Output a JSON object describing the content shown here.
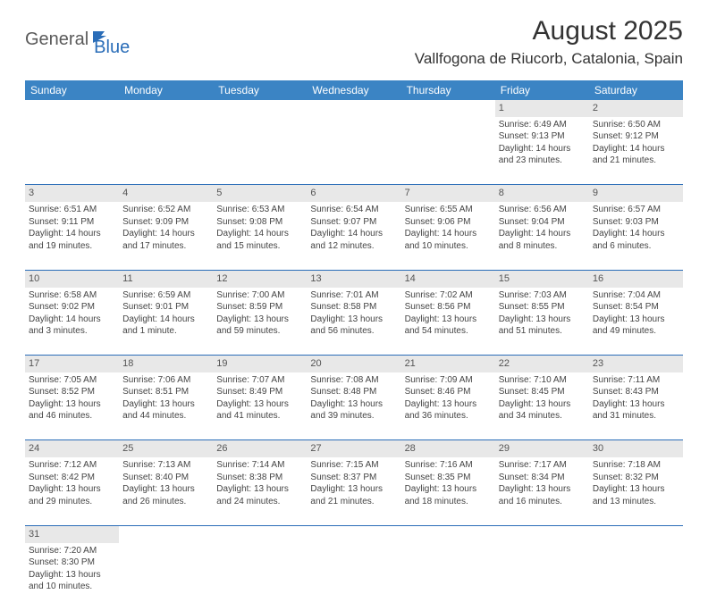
{
  "logo": {
    "part1": "General",
    "part2": "Blue"
  },
  "title": "August 2025",
  "location": "Vallfogona de Riucorb, Catalonia, Spain",
  "day_headers": [
    "Sunday",
    "Monday",
    "Tuesday",
    "Wednesday",
    "Thursday",
    "Friday",
    "Saturday"
  ],
  "colors": {
    "header_bg": "#3b84c4",
    "header_text": "#ffffff",
    "border": "#2a6db8",
    "daynum_bg": "#e8e8e8",
    "logo_gray": "#5a5a5a",
    "logo_blue": "#2a6db8",
    "page_bg": "#ffffff"
  },
  "fonts": {
    "title_size": 30,
    "location_size": 17,
    "header_size": 12,
    "cell_size": 10,
    "daynum_size": 11
  },
  "weeks": [
    [
      null,
      null,
      null,
      null,
      null,
      {
        "n": "1",
        "sr": "6:49 AM",
        "ss": "9:13 PM",
        "dl": "14 hours and 23 minutes."
      },
      {
        "n": "2",
        "sr": "6:50 AM",
        "ss": "9:12 PM",
        "dl": "14 hours and 21 minutes."
      }
    ],
    [
      {
        "n": "3",
        "sr": "6:51 AM",
        "ss": "9:11 PM",
        "dl": "14 hours and 19 minutes."
      },
      {
        "n": "4",
        "sr": "6:52 AM",
        "ss": "9:09 PM",
        "dl": "14 hours and 17 minutes."
      },
      {
        "n": "5",
        "sr": "6:53 AM",
        "ss": "9:08 PM",
        "dl": "14 hours and 15 minutes."
      },
      {
        "n": "6",
        "sr": "6:54 AM",
        "ss": "9:07 PM",
        "dl": "14 hours and 12 minutes."
      },
      {
        "n": "7",
        "sr": "6:55 AM",
        "ss": "9:06 PM",
        "dl": "14 hours and 10 minutes."
      },
      {
        "n": "8",
        "sr": "6:56 AM",
        "ss": "9:04 PM",
        "dl": "14 hours and 8 minutes."
      },
      {
        "n": "9",
        "sr": "6:57 AM",
        "ss": "9:03 PM",
        "dl": "14 hours and 6 minutes."
      }
    ],
    [
      {
        "n": "10",
        "sr": "6:58 AM",
        "ss": "9:02 PM",
        "dl": "14 hours and 3 minutes."
      },
      {
        "n": "11",
        "sr": "6:59 AM",
        "ss": "9:01 PM",
        "dl": "14 hours and 1 minute."
      },
      {
        "n": "12",
        "sr": "7:00 AM",
        "ss": "8:59 PM",
        "dl": "13 hours and 59 minutes."
      },
      {
        "n": "13",
        "sr": "7:01 AM",
        "ss": "8:58 PM",
        "dl": "13 hours and 56 minutes."
      },
      {
        "n": "14",
        "sr": "7:02 AM",
        "ss": "8:56 PM",
        "dl": "13 hours and 54 minutes."
      },
      {
        "n": "15",
        "sr": "7:03 AM",
        "ss": "8:55 PM",
        "dl": "13 hours and 51 minutes."
      },
      {
        "n": "16",
        "sr": "7:04 AM",
        "ss": "8:54 PM",
        "dl": "13 hours and 49 minutes."
      }
    ],
    [
      {
        "n": "17",
        "sr": "7:05 AM",
        "ss": "8:52 PM",
        "dl": "13 hours and 46 minutes."
      },
      {
        "n": "18",
        "sr": "7:06 AM",
        "ss": "8:51 PM",
        "dl": "13 hours and 44 minutes."
      },
      {
        "n": "19",
        "sr": "7:07 AM",
        "ss": "8:49 PM",
        "dl": "13 hours and 41 minutes."
      },
      {
        "n": "20",
        "sr": "7:08 AM",
        "ss": "8:48 PM",
        "dl": "13 hours and 39 minutes."
      },
      {
        "n": "21",
        "sr": "7:09 AM",
        "ss": "8:46 PM",
        "dl": "13 hours and 36 minutes."
      },
      {
        "n": "22",
        "sr": "7:10 AM",
        "ss": "8:45 PM",
        "dl": "13 hours and 34 minutes."
      },
      {
        "n": "23",
        "sr": "7:11 AM",
        "ss": "8:43 PM",
        "dl": "13 hours and 31 minutes."
      }
    ],
    [
      {
        "n": "24",
        "sr": "7:12 AM",
        "ss": "8:42 PM",
        "dl": "13 hours and 29 minutes."
      },
      {
        "n": "25",
        "sr": "7:13 AM",
        "ss": "8:40 PM",
        "dl": "13 hours and 26 minutes."
      },
      {
        "n": "26",
        "sr": "7:14 AM",
        "ss": "8:38 PM",
        "dl": "13 hours and 24 minutes."
      },
      {
        "n": "27",
        "sr": "7:15 AM",
        "ss": "8:37 PM",
        "dl": "13 hours and 21 minutes."
      },
      {
        "n": "28",
        "sr": "7:16 AM",
        "ss": "8:35 PM",
        "dl": "13 hours and 18 minutes."
      },
      {
        "n": "29",
        "sr": "7:17 AM",
        "ss": "8:34 PM",
        "dl": "13 hours and 16 minutes."
      },
      {
        "n": "30",
        "sr": "7:18 AM",
        "ss": "8:32 PM",
        "dl": "13 hours and 13 minutes."
      }
    ],
    [
      {
        "n": "31",
        "sr": "7:20 AM",
        "ss": "8:30 PM",
        "dl": "13 hours and 10 minutes."
      },
      null,
      null,
      null,
      null,
      null,
      null
    ]
  ]
}
